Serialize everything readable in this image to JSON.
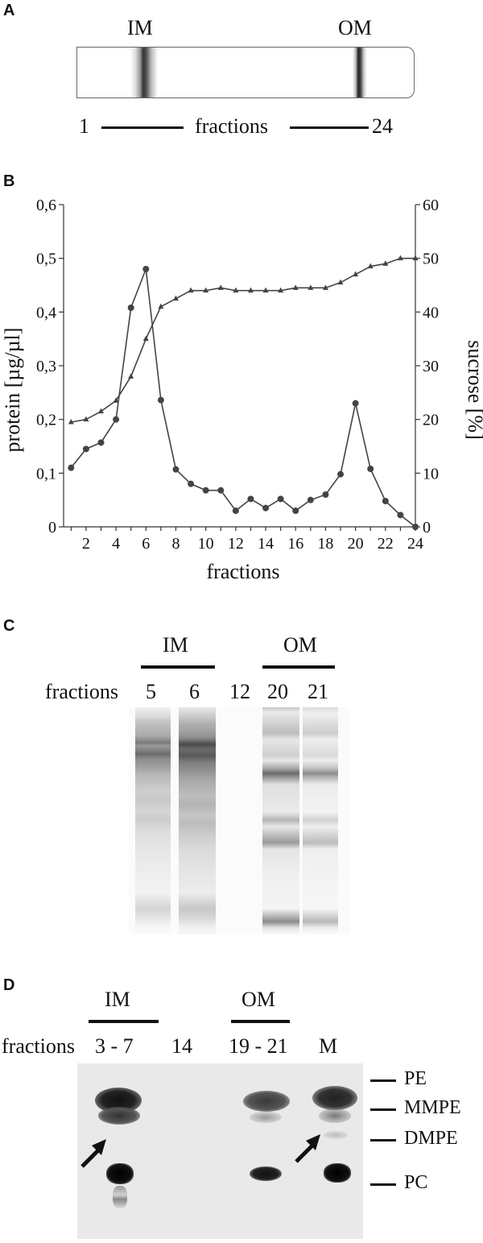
{
  "panelA": {
    "letter": "A",
    "band_labels": [
      "IM",
      "OM"
    ],
    "axis_start": "1",
    "axis_word": "fractions",
    "axis_end": "24"
  },
  "panelB": {
    "letter": "B",
    "chart_data": {
      "type": "line",
      "xlabel": "fractions",
      "ylabel_left": "protein [µg/µl]",
      "ylabel_right": "sucrose [%]",
      "x": [
        1,
        2,
        3,
        4,
        5,
        6,
        7,
        8,
        9,
        10,
        11,
        12,
        13,
        14,
        15,
        16,
        17,
        18,
        19,
        20,
        21,
        22,
        23,
        24
      ],
      "x_ticks": [
        "2",
        "4",
        "6",
        "8",
        "10",
        "12",
        "14",
        "16",
        "18",
        "20",
        "22",
        "24"
      ],
      "x_tick_values": [
        2,
        4,
        6,
        8,
        10,
        12,
        14,
        16,
        18,
        20,
        22,
        24
      ],
      "y_left_ticks": [
        "0",
        "0,1",
        "0,2",
        "0,3",
        "0,4",
        "0,5",
        "0,6"
      ],
      "y_left_range": [
        0,
        0.6
      ],
      "y_right_ticks": [
        "0",
        "10",
        "20",
        "30",
        "40",
        "50",
        "60"
      ],
      "y_right_range": [
        0,
        60
      ],
      "series": [
        {
          "axis": "left",
          "marker": "circle",
          "values": [
            0.11,
            0.145,
            0.157,
            0.2,
            0.408,
            0.48,
            0.236,
            0.107,
            0.08,
            0.068,
            0.068,
            0.03,
            0.052,
            0.035,
            0.052,
            0.03,
            0.05,
            0.06,
            0.098,
            0.23,
            0.108,
            0.048,
            0.022,
            0.0
          ]
        },
        {
          "axis": "right",
          "marker": "triangle",
          "values": [
            19.5,
            20,
            21.5,
            23.5,
            28,
            35,
            41,
            42.5,
            44,
            44,
            44.5,
            44,
            44,
            44,
            44,
            44.5,
            44.5,
            44.5,
            45.5,
            47,
            48.5,
            49,
            50,
            50
          ]
        }
      ]
    }
  },
  "panelC": {
    "letter": "C",
    "groups": [
      "IM",
      "OM"
    ],
    "row_label": "fractions",
    "lanes": [
      "5",
      "6",
      "12",
      "20",
      "21"
    ]
  },
  "panelD": {
    "letter": "D",
    "groups": [
      "IM",
      "OM"
    ],
    "row_label": "fractions",
    "lanes": [
      "3 - 7",
      "14",
      "19 - 21",
      "M"
    ],
    "lipid_labels": [
      "PE",
      "MMPE",
      "DMPE",
      "PC"
    ]
  }
}
